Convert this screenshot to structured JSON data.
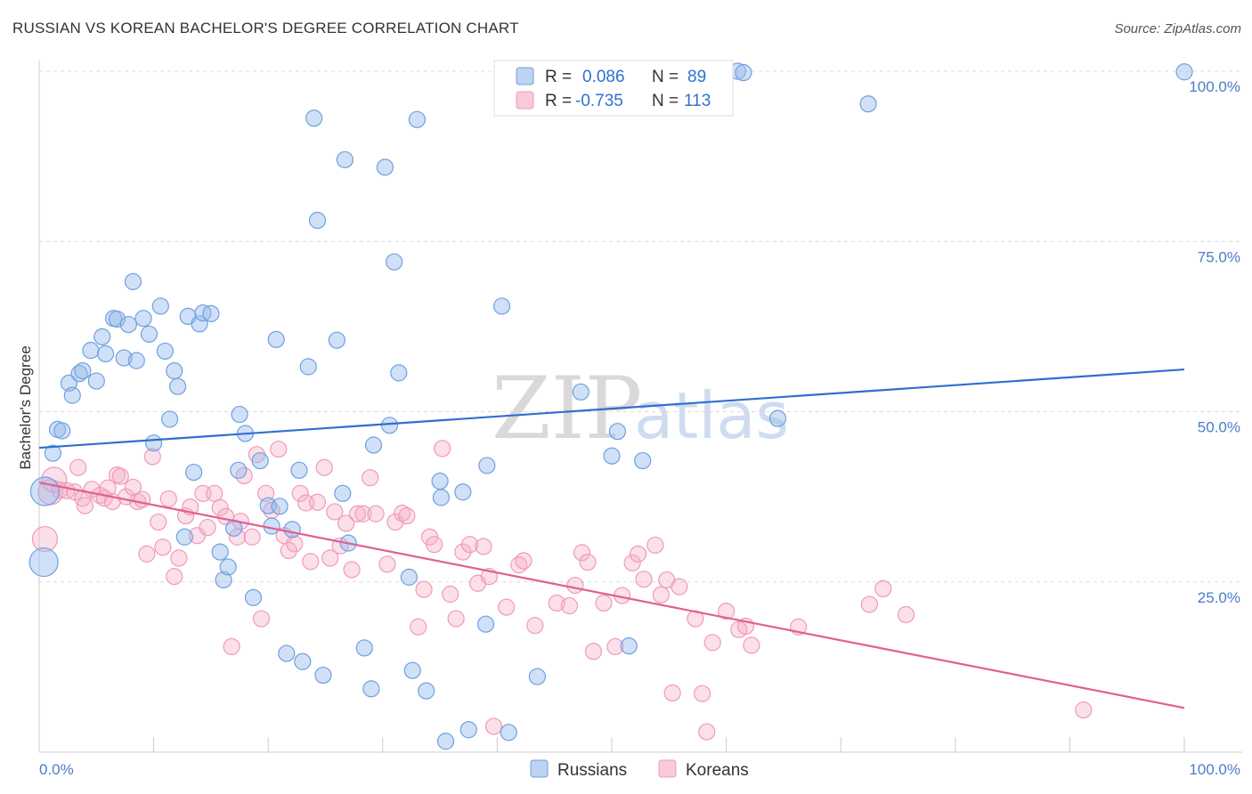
{
  "title": "RUSSIAN VS KOREAN BACHELOR'S DEGREE CORRELATION CHART",
  "source": "Source: ZipAtlas.com",
  "watermark": {
    "zip": "ZIP",
    "atlas": "atlas"
  },
  "legend_top": [
    {
      "r_label": "R =",
      "r_value": "0.086",
      "n_label": "N =",
      "n_value": "89"
    },
    {
      "r_label": "R =",
      "r_value": "-0.735",
      "n_label": "N =",
      "n_value": "113"
    }
  ],
  "chart_data": {
    "type": "scatter",
    "title": "RUSSIAN VS KOREAN BACHELOR'S DEGREE CORRELATION CHART",
    "xlabel": "",
    "ylabel": "Bachelor's Degree",
    "xlim": [
      0,
      100
    ],
    "ylim": [
      0,
      100
    ],
    "x_tick_labels": [
      "0.0%",
      "100.0%"
    ],
    "y_tick_labels": [
      "25.0%",
      "50.0%",
      "75.0%",
      "100.0%"
    ],
    "y_ticks": [
      25,
      50,
      75,
      100
    ],
    "grid": true,
    "legend_position": "bottom-center",
    "colors": {
      "russians": "#6fa0e0",
      "koreans": "#f09ab8",
      "russians_line": "#2f6fd0",
      "koreans_line": "#e06090"
    },
    "series": [
      {
        "name": "Russians",
        "trend": {
          "x0": 0,
          "y0": 44.7,
          "x1": 100,
          "y1": 56.2
        },
        "points": [
          [
            0.5,
            38.3
          ],
          [
            0.4,
            27.9
          ],
          [
            1.2,
            43.9
          ],
          [
            1.6,
            47.4
          ],
          [
            2,
            47.2
          ],
          [
            2.6,
            54.2
          ],
          [
            2.9,
            52.4
          ],
          [
            3.5,
            55.6
          ],
          [
            3.8,
            56
          ],
          [
            4.5,
            59
          ],
          [
            5,
            54.5
          ],
          [
            5.5,
            61
          ],
          [
            5.8,
            58.5
          ],
          [
            6.5,
            63.7
          ],
          [
            6.8,
            63.6
          ],
          [
            7.4,
            57.9
          ],
          [
            7.8,
            62.8
          ],
          [
            8.2,
            69.1
          ],
          [
            8.5,
            57.5
          ],
          [
            9.1,
            63.7
          ],
          [
            9.6,
            61.4
          ],
          [
            10,
            45.4
          ],
          [
            10.6,
            65.5
          ],
          [
            11,
            58.9
          ],
          [
            11.4,
            48.9
          ],
          [
            11.8,
            56
          ],
          [
            12.1,
            53.7
          ],
          [
            12.7,
            31.6
          ],
          [
            13,
            64
          ],
          [
            13.5,
            41.1
          ],
          [
            14,
            62.9
          ],
          [
            14.3,
            64.5
          ],
          [
            15,
            64.4
          ],
          [
            15.8,
            29.4
          ],
          [
            16.1,
            25.3
          ],
          [
            16.5,
            27.2
          ],
          [
            17,
            32.9
          ],
          [
            17.4,
            41.4
          ],
          [
            17.5,
            49.6
          ],
          [
            18,
            46.8
          ],
          [
            18.7,
            22.7
          ],
          [
            19.3,
            42.8
          ],
          [
            20,
            36.2
          ],
          [
            20.3,
            33.2
          ],
          [
            20.7,
            60.6
          ],
          [
            21,
            36.1
          ],
          [
            21.6,
            14.5
          ],
          [
            22.1,
            32.7
          ],
          [
            22.7,
            41.4
          ],
          [
            23,
            13.3
          ],
          [
            23.5,
            56.6
          ],
          [
            24,
            93.1
          ],
          [
            24.3,
            78.1
          ],
          [
            24.8,
            11.3
          ],
          [
            26,
            60.5
          ],
          [
            26.5,
            38
          ],
          [
            26.7,
            87
          ],
          [
            27,
            30.7
          ],
          [
            28.4,
            15.3
          ],
          [
            29,
            9.3
          ],
          [
            29.2,
            45.1
          ],
          [
            30.2,
            85.9
          ],
          [
            30.6,
            48
          ],
          [
            31,
            72
          ],
          [
            31.4,
            55.7
          ],
          [
            32.3,
            25.7
          ],
          [
            32.6,
            12
          ],
          [
            33,
            92.9
          ],
          [
            33.8,
            9
          ],
          [
            35,
            39.8
          ],
          [
            35.1,
            37.4
          ],
          [
            35.5,
            1.6
          ],
          [
            37,
            38.2
          ],
          [
            37.5,
            3.3
          ],
          [
            39,
            18.8
          ],
          [
            39.1,
            42.1
          ],
          [
            40.4,
            65.5
          ],
          [
            41,
            2.9
          ],
          [
            43.5,
            11.1
          ],
          [
            47.3,
            52.9
          ],
          [
            50,
            43.5
          ],
          [
            50.5,
            47.1
          ],
          [
            51.5,
            15.6
          ],
          [
            52.7,
            42.8
          ],
          [
            61,
            100
          ],
          [
            61.5,
            99.8
          ],
          [
            64.5,
            49
          ],
          [
            72.4,
            95.2
          ],
          [
            100,
            99.9
          ]
        ]
      },
      {
        "name": "Koreans",
        "trend": {
          "x0": 0,
          "y0": 39.6,
          "x1": 100,
          "y1": 6.5
        },
        "points": [
          [
            0.5,
            31.3
          ],
          [
            1,
            38.2
          ],
          [
            1.3,
            40
          ],
          [
            1.8,
            38.5
          ],
          [
            2.4,
            38.4
          ],
          [
            3.1,
            38.2
          ],
          [
            3.4,
            41.8
          ],
          [
            3.8,
            37.3
          ],
          [
            4,
            36.2
          ],
          [
            4.6,
            38.6
          ],
          [
            5.3,
            37.7
          ],
          [
            5.7,
            37.3
          ],
          [
            6,
            38.8
          ],
          [
            6.4,
            36.8
          ],
          [
            6.8,
            40.7
          ],
          [
            7.1,
            40.5
          ],
          [
            7.6,
            37.5
          ],
          [
            8.2,
            38.9
          ],
          [
            8.6,
            36.8
          ],
          [
            9,
            37.1
          ],
          [
            9.4,
            29.1
          ],
          [
            9.9,
            43.4
          ],
          [
            10.4,
            33.8
          ],
          [
            10.8,
            30.1
          ],
          [
            11.3,
            37.2
          ],
          [
            11.8,
            25.8
          ],
          [
            12.2,
            28.5
          ],
          [
            12.8,
            34.7
          ],
          [
            13.2,
            36
          ],
          [
            13.8,
            31.8
          ],
          [
            14.3,
            38
          ],
          [
            14.7,
            33
          ],
          [
            15.3,
            38
          ],
          [
            15.8,
            35.9
          ],
          [
            16.3,
            34.6
          ],
          [
            16.8,
            15.5
          ],
          [
            17.3,
            31.6
          ],
          [
            17.6,
            33.9
          ],
          [
            17.9,
            40.6
          ],
          [
            18.6,
            31.6
          ],
          [
            19,
            43.7
          ],
          [
            19.4,
            19.6
          ],
          [
            19.8,
            38
          ],
          [
            20.3,
            35.5
          ],
          [
            20.9,
            44.5
          ],
          [
            21.4,
            31.8
          ],
          [
            21.8,
            29.6
          ],
          [
            22.3,
            30.6
          ],
          [
            22.8,
            38
          ],
          [
            23.3,
            36.6
          ],
          [
            23.7,
            28
          ],
          [
            24.3,
            36.7
          ],
          [
            24.9,
            41.8
          ],
          [
            25.4,
            28.5
          ],
          [
            25.8,
            35.3
          ],
          [
            26.3,
            30.3
          ],
          [
            26.8,
            33.6
          ],
          [
            27.3,
            26.8
          ],
          [
            27.8,
            35
          ],
          [
            28.3,
            35
          ],
          [
            28.9,
            40.3
          ],
          [
            29.4,
            35
          ],
          [
            30.4,
            27.6
          ],
          [
            31.1,
            33.8
          ],
          [
            31.7,
            35.1
          ],
          [
            32.1,
            34.7
          ],
          [
            33.1,
            18.4
          ],
          [
            33.6,
            23.9
          ],
          [
            34.1,
            31.6
          ],
          [
            34.5,
            30.5
          ],
          [
            35.2,
            44.6
          ],
          [
            35.9,
            23.2
          ],
          [
            36.4,
            19.6
          ],
          [
            37,
            29.4
          ],
          [
            37.6,
            30.5
          ],
          [
            38.3,
            24.8
          ],
          [
            38.8,
            30.2
          ],
          [
            39.3,
            25.8
          ],
          [
            39.7,
            3.8
          ],
          [
            40.8,
            21.3
          ],
          [
            41.9,
            27.5
          ],
          [
            42.3,
            28.1
          ],
          [
            43.3,
            18.6
          ],
          [
            45.2,
            21.9
          ],
          [
            46.3,
            21.5
          ],
          [
            46.8,
            24.5
          ],
          [
            47.4,
            29.3
          ],
          [
            47.9,
            27.9
          ],
          [
            48.4,
            14.8
          ],
          [
            49.3,
            21.9
          ],
          [
            50.3,
            15.5
          ],
          [
            50.9,
            23
          ],
          [
            51.8,
            27.8
          ],
          [
            52.3,
            29.1
          ],
          [
            52.8,
            25.4
          ],
          [
            53.8,
            30.4
          ],
          [
            54.3,
            23.1
          ],
          [
            54.8,
            25.3
          ],
          [
            55.3,
            8.7
          ],
          [
            55.9,
            24.3
          ],
          [
            57.3,
            19.6
          ],
          [
            57.9,
            8.6
          ],
          [
            58.3,
            3
          ],
          [
            58.8,
            16.1
          ],
          [
            60,
            20.7
          ],
          [
            61.1,
            18
          ],
          [
            61.7,
            18.5
          ],
          [
            62.2,
            15.7
          ],
          [
            66.3,
            18.4
          ],
          [
            72.5,
            21.7
          ],
          [
            73.7,
            24
          ],
          [
            75.7,
            20.2
          ],
          [
            91.2,
            6.2
          ]
        ]
      }
    ]
  },
  "legend_bottom": [
    {
      "label": "Russians"
    },
    {
      "label": "Koreans"
    }
  ]
}
